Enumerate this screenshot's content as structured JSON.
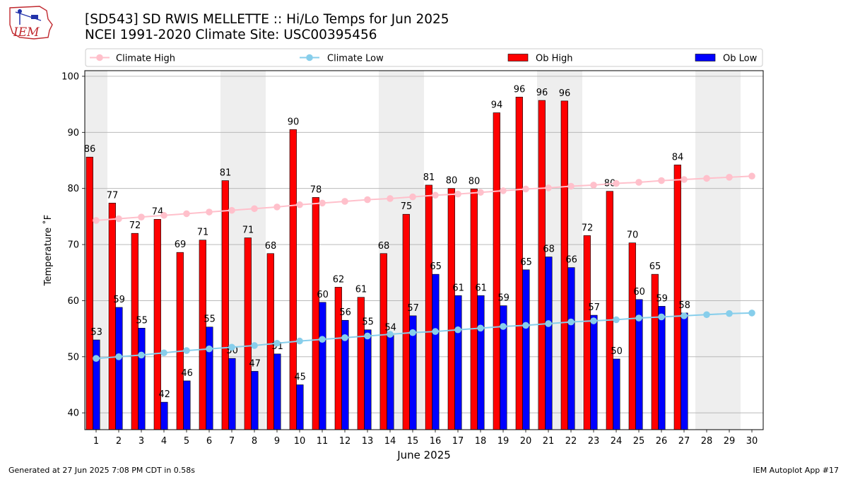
{
  "logo_text": "IEM",
  "title_line1": "[SD543] SD RWIS MELLETTE :: Hi/Lo Temps for Jun 2025",
  "title_line2": "NCEI 1991-2020 Climate Site: USC00395456",
  "footer_left": "Generated at 27 Jun 2025 7:08 PM CDT in 0.58s",
  "footer_right": "IEM Autoplot App #17",
  "colors": {
    "climate_high": "#ffc0cb",
    "climate_low": "#87ceeb",
    "ob_high": "#ff0000",
    "ob_low": "#0000ff",
    "weekend_band": "#eeeeee",
    "grid": "#b0b0b0"
  },
  "chart_data": {
    "type": "bar",
    "xlabel": "June 2025",
    "ylabel": "Temperature ˚F",
    "ylim": [
      37,
      101
    ],
    "yticks": [
      40,
      50,
      60,
      70,
      80,
      90,
      100
    ],
    "grid": "horizontal",
    "legend_placement": "top",
    "legend": [
      "Climate High",
      "Climate Low",
      "Ob High",
      "Ob Low"
    ],
    "days": [
      1,
      2,
      3,
      4,
      5,
      6,
      7,
      8,
      9,
      10,
      11,
      12,
      13,
      14,
      15,
      16,
      17,
      18,
      19,
      20,
      21,
      22,
      23,
      24,
      25,
      26,
      27,
      28,
      29,
      30
    ],
    "weekend_days": [
      1,
      7,
      8,
      14,
      15,
      21,
      22,
      28,
      29
    ],
    "series": [
      {
        "name": "Ob High",
        "kind": "bar",
        "values": [
          85.6,
          77.4,
          72.0,
          74.5,
          68.6,
          70.8,
          81.4,
          71.2,
          68.4,
          90.5,
          78.4,
          62.4,
          60.6,
          68.4,
          75.4,
          80.6,
          80.0,
          79.9,
          93.5,
          96.3,
          95.7,
          95.6,
          71.6,
          79.5,
          70.3,
          64.7,
          84.2
        ],
        "labels": [
          "86",
          "77",
          "72",
          "74",
          "69",
          "71",
          "81",
          "71",
          "68",
          "90",
          "78",
          "62",
          "61",
          "68",
          "75",
          "81",
          "80",
          "80",
          "94",
          "96",
          "96",
          "96",
          "72",
          "80",
          "70",
          "65",
          "84"
        ]
      },
      {
        "name": "Ob Low",
        "kind": "bar",
        "values": [
          53.0,
          58.8,
          55.1,
          41.9,
          45.7,
          55.3,
          49.7,
          47.4,
          50.5,
          45.0,
          59.7,
          56.5,
          54.8,
          53.8,
          57.3,
          64.7,
          60.9,
          60.9,
          59.1,
          65.5,
          67.8,
          65.9,
          57.4,
          49.6,
          60.2,
          59.0,
          57.8
        ],
        "labels": [
          "53",
          "59",
          "55",
          "42",
          "46",
          "55",
          "50",
          "47",
          "51",
          "45",
          "60",
          "56",
          "55",
          "54",
          "57",
          "65",
          "61",
          "61",
          "59",
          "65",
          "68",
          "66",
          "57",
          "50",
          "60",
          "59",
          "58"
        ]
      },
      {
        "name": "Climate High",
        "kind": "line",
        "values": [
          74.3,
          74.6,
          74.9,
          75.2,
          75.5,
          75.8,
          76.1,
          76.4,
          76.7,
          77.1,
          77.4,
          77.7,
          78.0,
          78.2,
          78.5,
          78.8,
          79.0,
          79.3,
          79.6,
          79.9,
          80.1,
          80.4,
          80.6,
          80.9,
          81.1,
          81.4,
          81.6,
          81.8,
          82.0,
          82.2
        ]
      },
      {
        "name": "Climate Low",
        "kind": "line",
        "values": [
          49.7,
          50.0,
          50.3,
          50.7,
          51.1,
          51.4,
          51.7,
          52.0,
          52.4,
          52.8,
          53.1,
          53.4,
          53.7,
          54.0,
          54.3,
          54.5,
          54.8,
          55.1,
          55.4,
          55.6,
          55.9,
          56.2,
          56.4,
          56.6,
          56.9,
          57.1,
          57.3,
          57.5,
          57.7,
          57.8
        ]
      }
    ]
  }
}
